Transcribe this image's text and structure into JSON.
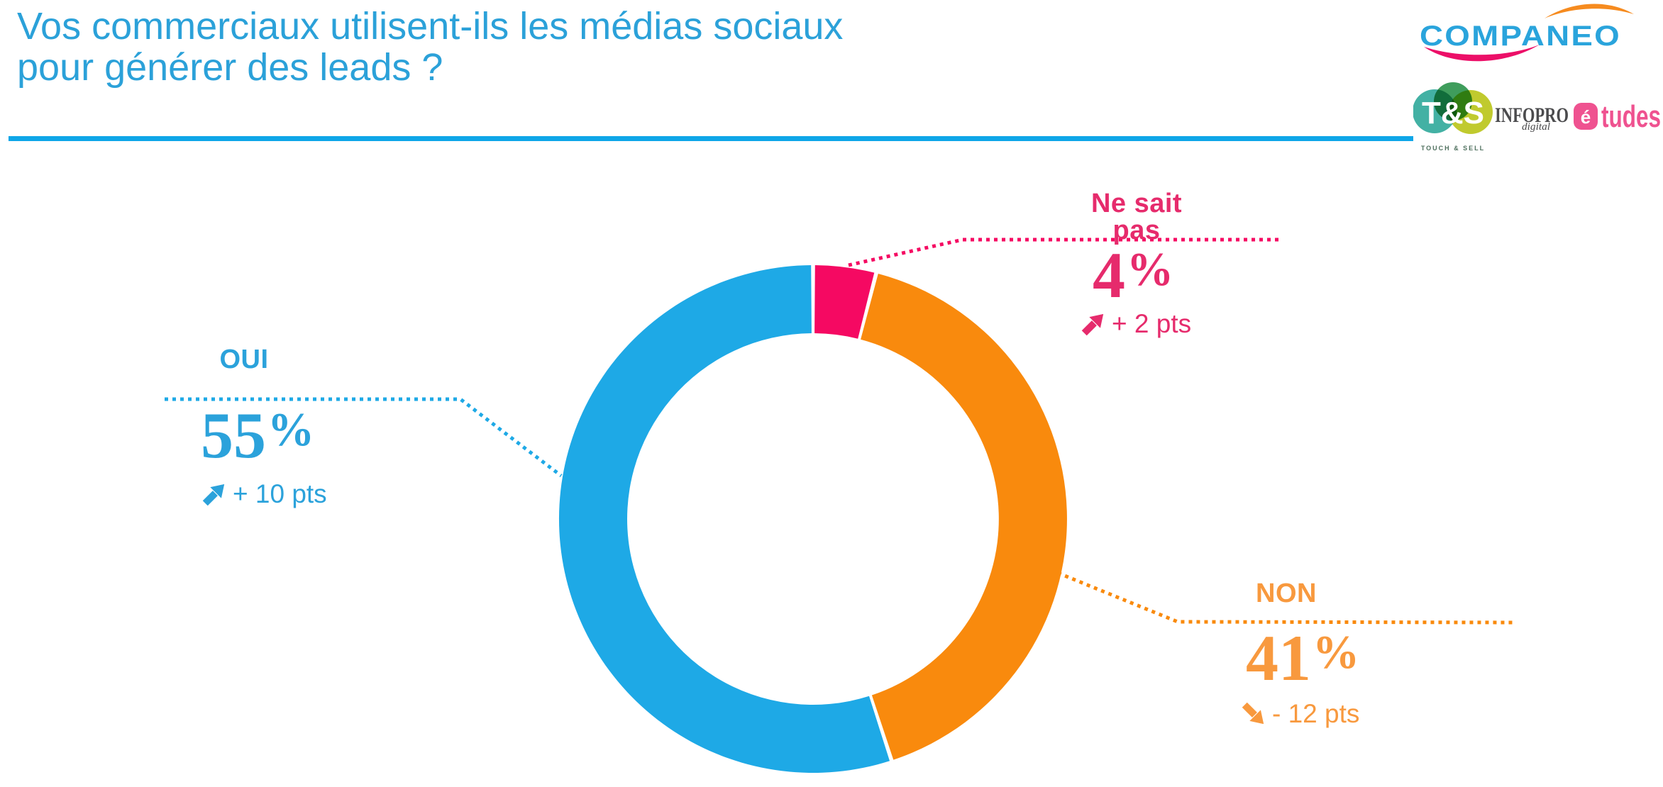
{
  "title": {
    "line1": "Vos commerciaux utilisent-ils les médias sociaux",
    "line2": "pour générer des leads ?",
    "color": "#2BA1D9"
  },
  "divider_color": "#0EA6E8",
  "logos": {
    "companeo": {
      "text": "COMPANEO",
      "text_color": "#2AA4DC",
      "swoosh_top_color": "#F68B1F",
      "swoosh_bottom_color": "#EC0F68"
    },
    "touch_and_sell": {
      "monogram": "T&S",
      "caption": "TOUCH & SELL",
      "circle_colors": [
        "#43B1A4",
        "#3F9D5C",
        "#C0CA2E"
      ],
      "monogram_color": "#FFFFFF",
      "caption_color": "#50715F"
    },
    "infopro": {
      "name": "INFOPRO",
      "sub": "digital",
      "name_color": "#4B4B4D",
      "etudes_initial": "é",
      "etudes_rest": "tudes",
      "etudes_color": "#EF5290"
    }
  },
  "chart_data": {
    "type": "pie",
    "variant": "donut",
    "title": "Vos commerciaux utilisent-ils les médias sociaux pour générer des leads ?",
    "categories": [
      "Ne sait pas",
      "NON",
      "OUI"
    ],
    "values": [
      4,
      41,
      55
    ],
    "percent_sign": "%",
    "legend_position": "callouts",
    "segments": [
      {
        "key": "nsp",
        "label": "Ne sait pas",
        "value": 4,
        "value_display": "4",
        "delta": "+ 2 pts",
        "trend": "up",
        "color": "#F50962",
        "text_color": "#E62B6C"
      },
      {
        "key": "non",
        "label": "NON",
        "value": 41,
        "value_display": "41",
        "delta": "- 12 pts",
        "trend": "down",
        "color": "#F98A0D",
        "text_color": "#F8993E"
      },
      {
        "key": "oui",
        "label": "OUI",
        "value": 55,
        "value_display": "55",
        "delta": "+ 10 pts",
        "trend": "up",
        "color": "#1EA9E6",
        "text_color": "#2BA2DB"
      }
    ]
  }
}
